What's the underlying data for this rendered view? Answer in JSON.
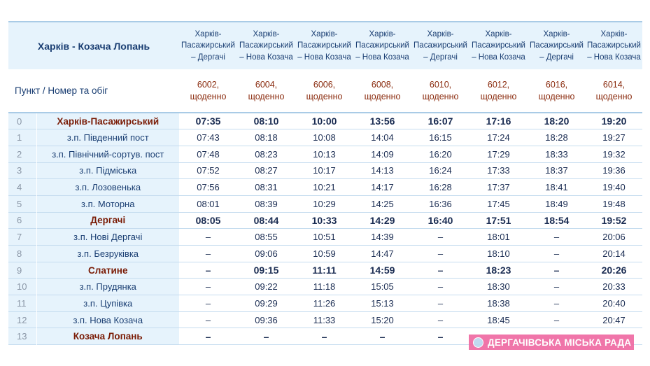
{
  "title": "Харків - Козача Лопань",
  "row_header_label": "Пункт / Номер та обіг",
  "columns": [
    {
      "route": "Харків-Пасажирський – Дергачі",
      "train": "6002, щоденно"
    },
    {
      "route": "Харків-Пасажирський – Нова Козача",
      "train": "6004, щоденно"
    },
    {
      "route": "Харків-Пасажирський – Нова Козача",
      "train": "6006, щоденно"
    },
    {
      "route": "Харків-Пасажирський – Нова Козача",
      "train": "6008, щоденно"
    },
    {
      "route": "Харків-Пасажирський – Дергачі",
      "train": "6010, щоденно"
    },
    {
      "route": "Харків-Пасажирський – Нова Козача",
      "train": "6012, щоденно"
    },
    {
      "route": "Харків-Пасажирський – Дергачі",
      "train": "6016, щоденно"
    },
    {
      "route": "Харків-Пасажирський – Нова Козача",
      "train": "6014, щоденно"
    }
  ],
  "stations": [
    {
      "idx": "0",
      "name": "Харків-Пасажирський",
      "major": true,
      "times": [
        "07:35",
        "08:10",
        "10:00",
        "13:56",
        "16:07",
        "17:16",
        "18:20",
        "19:20"
      ]
    },
    {
      "idx": "1",
      "name": "з.п. Південний пост",
      "major": false,
      "times": [
        "07:43",
        "08:18",
        "10:08",
        "14:04",
        "16:15",
        "17:24",
        "18:28",
        "19:27"
      ]
    },
    {
      "idx": "2",
      "name": "з.п. Північний-сортув. пост",
      "major": false,
      "times": [
        "07:48",
        "08:23",
        "10:13",
        "14:09",
        "16:20",
        "17:29",
        "18:33",
        "19:32"
      ]
    },
    {
      "idx": "3",
      "name": "з.п. Підміська",
      "major": false,
      "times": [
        "07:52",
        "08:27",
        "10:17",
        "14:13",
        "16:24",
        "17:33",
        "18:37",
        "19:36"
      ]
    },
    {
      "idx": "4",
      "name": "з.п. Лозовенька",
      "major": false,
      "times": [
        "07:56",
        "08:31",
        "10:21",
        "14:17",
        "16:28",
        "17:37",
        "18:41",
        "19:40"
      ]
    },
    {
      "idx": "5",
      "name": "з.п. Моторна",
      "major": false,
      "times": [
        "08:01",
        "08:39",
        "10:29",
        "14:25",
        "16:36",
        "17:45",
        "18:49",
        "19:48"
      ]
    },
    {
      "idx": "6",
      "name": "Дергачі",
      "major": true,
      "times": [
        "08:05",
        "08:44",
        "10:33",
        "14:29",
        "16:40",
        "17:51",
        "18:54",
        "19:52"
      ]
    },
    {
      "idx": "7",
      "name": "з.п. Нові Дергачі",
      "major": false,
      "times": [
        "–",
        "08:55",
        "10:51",
        "14:39",
        "–",
        "18:01",
        "–",
        "20:06"
      ]
    },
    {
      "idx": "8",
      "name": "з.п. Безруківка",
      "major": false,
      "times": [
        "–",
        "09:06",
        "10:59",
        "14:47",
        "–",
        "18:10",
        "–",
        "20:14"
      ]
    },
    {
      "idx": "9",
      "name": "Слатине",
      "major": true,
      "times": [
        "–",
        "09:15",
        "11:11",
        "14:59",
        "–",
        "18:23",
        "–",
        "20:26"
      ]
    },
    {
      "idx": "10",
      "name": "з.п. Прудянка",
      "major": false,
      "times": [
        "–",
        "09:22",
        "11:18",
        "15:05",
        "–",
        "18:30",
        "–",
        "20:33"
      ]
    },
    {
      "idx": "11",
      "name": "з.п. Цупівка",
      "major": false,
      "times": [
        "–",
        "09:29",
        "11:26",
        "15:13",
        "–",
        "18:38",
        "–",
        "20:40"
      ]
    },
    {
      "idx": "12",
      "name": "з.п. Нова Козача",
      "major": false,
      "times": [
        "–",
        "09:36",
        "11:33",
        "15:20",
        "–",
        "18:45",
        "–",
        "20:47"
      ]
    },
    {
      "idx": "13",
      "name": "Козача Лопань",
      "major": true,
      "times": [
        "–",
        "–",
        "–",
        "–",
        "–",
        "",
        "",
        " "
      ]
    }
  ],
  "watermark": "ДЕРГАЧІВСЬКА МІСЬКА РАДА",
  "colors": {
    "header_bg": "#e6f3fc",
    "station_major": "#7a1c06",
    "text_blue": "#1b3f73",
    "watermark_bg": "#ef6aa2"
  }
}
